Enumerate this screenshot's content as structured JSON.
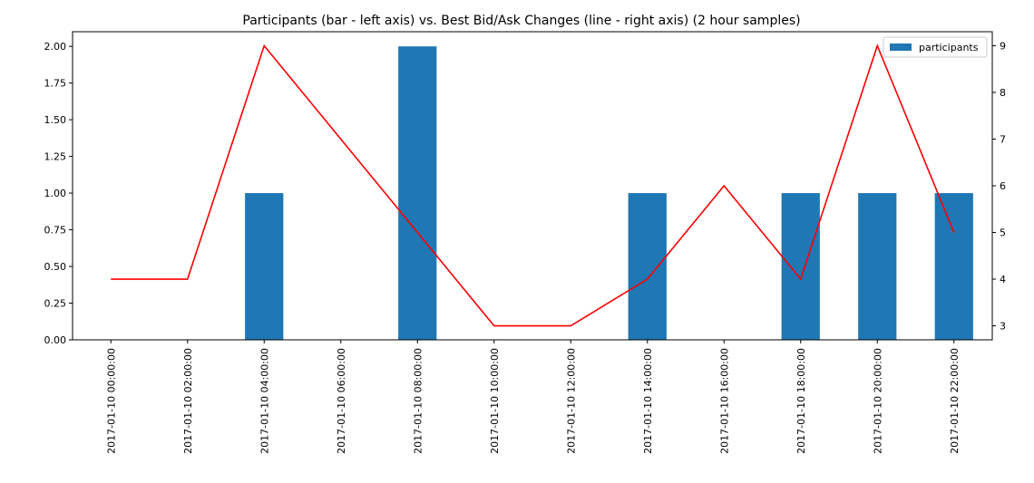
{
  "chart_data": {
    "type": "bar+line",
    "title": "Participants (bar - left axis) vs. Best Bid/Ask Changes (line - right axis) (2 hour samples)",
    "categories": [
      "2017-01-10 00:00:00",
      "2017-01-10 02:00:00",
      "2017-01-10 04:00:00",
      "2017-01-10 06:00:00",
      "2017-01-10 08:00:00",
      "2017-01-10 10:00:00",
      "2017-01-10 12:00:00",
      "2017-01-10 14:00:00",
      "2017-01-10 16:00:00",
      "2017-01-10 18:00:00",
      "2017-01-10 20:00:00",
      "2017-01-10 22:00:00"
    ],
    "series": [
      {
        "name": "participants",
        "kind": "bar",
        "axis": "left",
        "color": "#1f77b4",
        "values": [
          0,
          0,
          1,
          0,
          2,
          0,
          0,
          1,
          0,
          1,
          1,
          1
        ]
      },
      {
        "kind": "line",
        "axis": "right",
        "color": "#ff0000",
        "values": [
          4,
          4,
          9,
          7,
          5,
          3,
          3,
          4,
          6,
          4,
          9,
          5
        ]
      }
    ],
    "left_axis": {
      "ylim": [
        0,
        2.1
      ],
      "ticks": [
        0,
        0.25,
        0.5,
        0.75,
        1.0,
        1.25,
        1.5,
        1.75,
        2.0
      ],
      "tick_labels": [
        "0.00",
        "0.25",
        "0.50",
        "0.75",
        "1.00",
        "1.25",
        "1.50",
        "1.75",
        "2.00"
      ]
    },
    "right_axis": {
      "ylim": [
        2.7,
        9.3
      ],
      "ticks": [
        3,
        4,
        5,
        6,
        7,
        8,
        9
      ],
      "tick_labels": [
        "3",
        "4",
        "5",
        "6",
        "7",
        "8",
        "9"
      ]
    },
    "legend": {
      "placement": "top-right",
      "entries": [
        "participants"
      ]
    },
    "grid": false
  }
}
